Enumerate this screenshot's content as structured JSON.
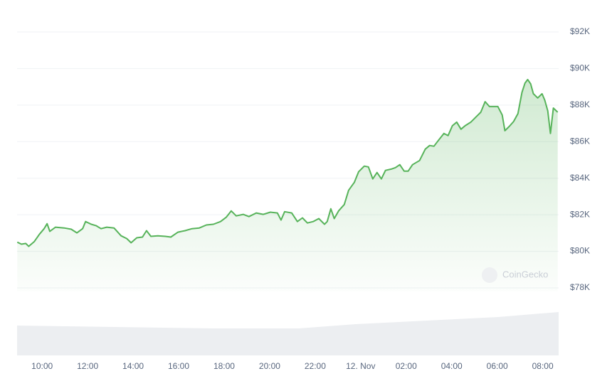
{
  "chart_data": {
    "type": "line",
    "x": [
      8.91,
      9.09,
      9.28,
      9.41,
      9.66,
      9.88,
      10.09,
      10.22,
      10.34,
      10.59,
      10.97,
      11.28,
      11.53,
      11.78,
      11.91,
      12.16,
      12.38,
      12.59,
      12.84,
      13.16,
      13.47,
      13.72,
      13.91,
      14.16,
      14.41,
      14.59,
      14.78,
      15.09,
      15.41,
      15.66,
      15.97,
      16.28,
      16.59,
      16.91,
      17.22,
      17.53,
      17.84,
      18.09,
      18.31,
      18.53,
      18.84,
      19.09,
      19.41,
      19.72,
      20.03,
      20.34,
      20.5,
      20.66,
      20.97,
      21.22,
      21.44,
      21.66,
      21.91,
      22.16,
      22.41,
      22.53,
      22.69,
      22.84,
      23.03,
      23.28,
      23.47,
      23.72,
      23.91,
      24.16,
      24.34,
      24.53,
      24.72,
      24.91,
      25.09,
      25.34,
      25.53,
      25.72,
      25.91,
      26.09,
      26.28,
      26.59,
      26.84,
      27.03,
      27.22,
      27.41,
      27.66,
      27.84,
      28.03,
      28.22,
      28.41,
      28.59,
      28.84,
      29.09,
      29.28,
      29.47,
      29.66,
      29.84,
      30.03,
      30.22,
      30.34,
      30.53,
      30.72,
      30.91,
      31.09,
      31.22,
      31.34,
      31.47,
      31.59,
      31.78,
      31.97,
      32.09,
      32.22,
      32.34,
      32.47,
      32.66
    ],
    "series": [
      {
        "color": "#57b35a",
        "values": [
          80.5,
          80.39,
          80.43,
          80.27,
          80.54,
          80.93,
          81.24,
          81.51,
          81.09,
          81.32,
          81.28,
          81.21,
          81.01,
          81.24,
          81.63,
          81.48,
          81.4,
          81.24,
          81.32,
          81.28,
          80.85,
          80.7,
          80.47,
          80.74,
          80.78,
          81.13,
          80.82,
          80.85,
          80.82,
          80.78,
          81.05,
          81.13,
          81.24,
          81.28,
          81.44,
          81.48,
          81.63,
          81.86,
          82.21,
          81.94,
          82.02,
          81.9,
          82.1,
          82.02,
          82.14,
          82.1,
          81.71,
          82.17,
          82.1,
          81.63,
          81.83,
          81.55,
          81.63,
          81.79,
          81.48,
          81.63,
          82.33,
          81.79,
          82.21,
          82.56,
          83.34,
          83.77,
          84.35,
          84.66,
          84.62,
          83.96,
          84.31,
          83.96,
          84.43,
          84.5,
          84.58,
          84.74,
          84.39,
          84.39,
          84.74,
          84.97,
          85.59,
          85.79,
          85.75,
          86.06,
          86.45,
          86.33,
          86.87,
          87.07,
          86.68,
          86.87,
          87.07,
          87.38,
          87.61,
          88.19,
          87.92,
          87.92,
          87.92,
          87.46,
          86.6,
          86.83,
          87.1,
          87.53,
          88.7,
          89.2,
          89.4,
          89.16,
          88.62,
          88.39,
          88.62,
          88.27,
          87.69,
          86.45,
          87.84,
          87.61
        ]
      }
    ],
    "xlim": [
      8.9,
      32.7
    ],
    "xticks": [
      {
        "value": 10,
        "label": "10:00"
      },
      {
        "value": 12,
        "label": "12:00"
      },
      {
        "value": 14,
        "label": "14:00"
      },
      {
        "value": 16,
        "label": "16:00"
      },
      {
        "value": 18,
        "label": "18:00"
      },
      {
        "value": 20,
        "label": "20:00"
      },
      {
        "value": 22,
        "label": "22:00"
      },
      {
        "value": 24,
        "label": "12. Nov"
      },
      {
        "value": 26,
        "label": "02:00"
      },
      {
        "value": 28,
        "label": "04:00"
      },
      {
        "value": 30,
        "label": "06:00"
      },
      {
        "value": 32,
        "label": "08:00"
      }
    ],
    "ylim": [
      78,
      92
    ],
    "yticks": [
      {
        "value": 78,
        "label": "$78K"
      },
      {
        "value": 80,
        "label": "$80K"
      },
      {
        "value": 82,
        "label": "$82K"
      },
      {
        "value": 84,
        "label": "$84K"
      },
      {
        "value": 86,
        "label": "$86K"
      },
      {
        "value": 88,
        "label": "$88K"
      },
      {
        "value": 90,
        "label": "$90K"
      },
      {
        "value": 92,
        "label": "$92K"
      }
    ],
    "grid": true,
    "watermark": "CoinGecko"
  }
}
